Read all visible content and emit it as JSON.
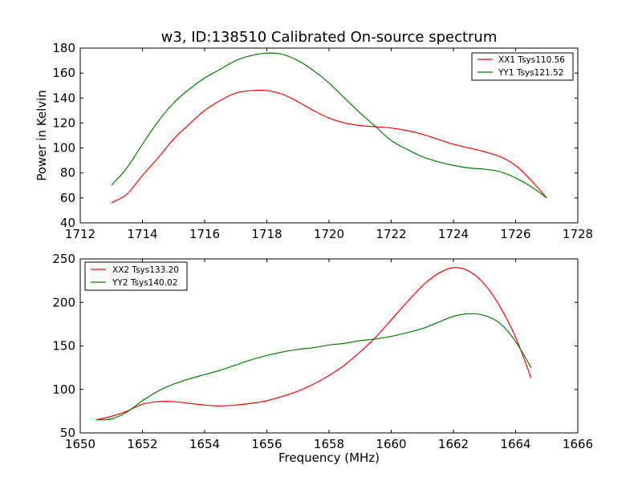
{
  "title": "w3, ID:138510 Calibrated On-source spectrum",
  "chart_data": [
    {
      "type": "line",
      "ylabel": "Power in Kelvin",
      "xlabel": "",
      "xlim": [
        1712,
        1728
      ],
      "ylim": [
        40,
        180
      ],
      "xticks": [
        1712,
        1714,
        1716,
        1718,
        1720,
        1722,
        1724,
        1726,
        1728
      ],
      "yticks": [
        40,
        60,
        80,
        100,
        120,
        140,
        160,
        180
      ],
      "legend_position": "top-right",
      "series": [
        {
          "name": "XX1 Tsys110.56",
          "color": "#ff0000",
          "points": [
            [
              1713,
              56
            ],
            [
              1713.5,
              63
            ],
            [
              1714,
              78
            ],
            [
              1714.5,
              92
            ],
            [
              1715,
              107
            ],
            [
              1715.5,
              119
            ],
            [
              1716,
              130
            ],
            [
              1716.5,
              138
            ],
            [
              1717,
              144
            ],
            [
              1717.5,
              146
            ],
            [
              1718,
              146
            ],
            [
              1718.5,
              143
            ],
            [
              1719,
              137
            ],
            [
              1719.5,
              130
            ],
            [
              1720,
              124
            ],
            [
              1720.5,
              120
            ],
            [
              1721,
              118
            ],
            [
              1721.5,
              117
            ],
            [
              1722,
              116
            ],
            [
              1722.5,
              114
            ],
            [
              1723,
              111
            ],
            [
              1723.5,
              107
            ],
            [
              1724,
              103
            ],
            [
              1724.5,
              100
            ],
            [
              1725,
              97
            ],
            [
              1725.5,
              93
            ],
            [
              1726,
              86
            ],
            [
              1726.5,
              74
            ],
            [
              1727,
              60
            ]
          ]
        },
        {
          "name": "YY1 Tsys121.52",
          "color": "#008000",
          "points": [
            [
              1713,
              70
            ],
            [
              1713.5,
              84
            ],
            [
              1714,
              103
            ],
            [
              1714.5,
              121
            ],
            [
              1715,
              136
            ],
            [
              1715.5,
              147
            ],
            [
              1716,
              156
            ],
            [
              1716.5,
              163
            ],
            [
              1717,
              170
            ],
            [
              1717.5,
              174
            ],
            [
              1718,
              176
            ],
            [
              1718.5,
              175
            ],
            [
              1719,
              170
            ],
            [
              1719.5,
              162
            ],
            [
              1720,
              152
            ],
            [
              1720.5,
              140
            ],
            [
              1721,
              128
            ],
            [
              1721.5,
              117
            ],
            [
              1722,
              106
            ],
            [
              1722.5,
              99
            ],
            [
              1723,
              93
            ],
            [
              1723.5,
              89
            ],
            [
              1724,
              86
            ],
            [
              1724.5,
              84
            ],
            [
              1725,
              83
            ],
            [
              1725.5,
              81
            ],
            [
              1726,
              76
            ],
            [
              1726.5,
              69
            ],
            [
              1727,
              60
            ]
          ]
        }
      ]
    },
    {
      "type": "line",
      "xlabel": "Frequency (MHz)",
      "ylabel": "",
      "xlim": [
        1650,
        1666
      ],
      "ylim": [
        50,
        250
      ],
      "xticks": [
        1650,
        1652,
        1654,
        1656,
        1658,
        1660,
        1662,
        1664,
        1666
      ],
      "yticks": [
        50,
        100,
        150,
        200,
        250
      ],
      "legend_position": "top-left",
      "series": [
        {
          "name": "XX2 Tsys133.20",
          "color": "#ff0000",
          "points": [
            [
              1650.5,
              65
            ],
            [
              1651,
              69
            ],
            [
              1651.5,
              75
            ],
            [
              1652,
              83
            ],
            [
              1652.5,
              86
            ],
            [
              1653,
              86
            ],
            [
              1653.5,
              84
            ],
            [
              1654,
              82
            ],
            [
              1654.5,
              81
            ],
            [
              1655,
              82
            ],
            [
              1655.5,
              84
            ],
            [
              1656,
              87
            ],
            [
              1656.5,
              92
            ],
            [
              1657,
              98
            ],
            [
              1657.5,
              106
            ],
            [
              1658,
              116
            ],
            [
              1658.5,
              128
            ],
            [
              1659,
              143
            ],
            [
              1659.5,
              160
            ],
            [
              1660,
              180
            ],
            [
              1660.5,
              200
            ],
            [
              1661,
              219
            ],
            [
              1661.5,
              233
            ],
            [
              1662,
              240
            ],
            [
              1662.5,
              236
            ],
            [
              1663,
              221
            ],
            [
              1663.5,
              195
            ],
            [
              1664,
              160
            ],
            [
              1664.5,
              113
            ]
          ]
        },
        {
          "name": "YY2 Tsys140.02",
          "color": "#008000",
          "points": [
            [
              1650.5,
              65
            ],
            [
              1651,
              66
            ],
            [
              1651.5,
              74
            ],
            [
              1652,
              87
            ],
            [
              1652.5,
              98
            ],
            [
              1653,
              106
            ],
            [
              1653.5,
              112
            ],
            [
              1654,
              117
            ],
            [
              1654.5,
              122
            ],
            [
              1655,
              128
            ],
            [
              1655.5,
              134
            ],
            [
              1656,
              139
            ],
            [
              1656.5,
              143
            ],
            [
              1657,
              146
            ],
            [
              1657.5,
              148
            ],
            [
              1658,
              151
            ],
            [
              1658.5,
              153
            ],
            [
              1659,
              156
            ],
            [
              1659.5,
              158
            ],
            [
              1660,
              161
            ],
            [
              1660.5,
              165
            ],
            [
              1661,
              170
            ],
            [
              1661.5,
              177
            ],
            [
              1662,
              184
            ],
            [
              1662.5,
              187
            ],
            [
              1663,
              185
            ],
            [
              1663.5,
              176
            ],
            [
              1664,
              155
            ],
            [
              1664.5,
              125
            ]
          ]
        }
      ]
    }
  ]
}
